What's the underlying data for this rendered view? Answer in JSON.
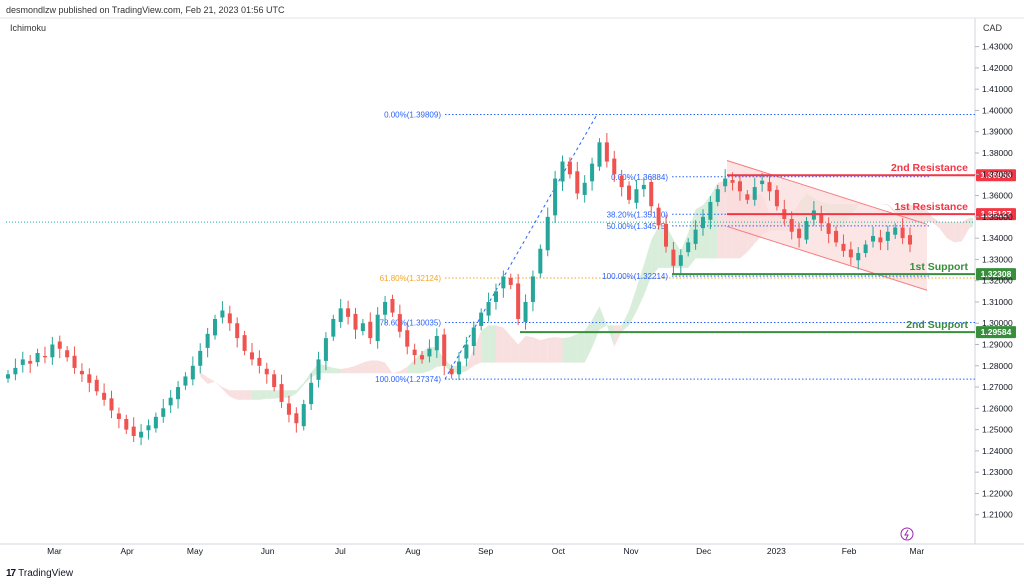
{
  "header": {
    "text": "desmondlzw published on TradingView.com, Feb 21, 2023 01:56 UTC"
  },
  "indicator_label": "Ichimoku",
  "currency_label": "CAD",
  "footer": {
    "logo_mark": "17",
    "logo_text": "TradingView"
  },
  "colors": {
    "up": "#26a69a",
    "down": "#ef5350",
    "resistance": "#f23645",
    "support": "#388e3c",
    "fib": "#2962ff",
    "fib_gold": "#f5a623",
    "cloud_green": "#cfe8d2",
    "cloud_red": "#f8d8d8",
    "channel_fill": "#fbdcdc",
    "channel_line": "#f77c80"
  },
  "chart_data": {
    "type": "candlestick",
    "yaxis": {
      "min": 1.2,
      "max": 1.435,
      "ticks": [
        "1.21000",
        "1.22000",
        "1.23000",
        "1.24000",
        "1.25000",
        "1.26000",
        "1.27000",
        "1.28000",
        "1.29000",
        "1.30000",
        "1.31000",
        "1.32000",
        "1.33000",
        "1.34000",
        "1.35000",
        "1.36000",
        "1.37000",
        "1.38000",
        "1.39000",
        "1.40000",
        "1.41000",
        "1.42000",
        "1.43000"
      ]
    },
    "xaxis": {
      "labels": [
        {
          "label": "Mar",
          "pos": 0.05
        },
        {
          "label": "Apr",
          "pos": 0.125
        },
        {
          "label": "May",
          "pos": 0.195
        },
        {
          "label": "Jun",
          "pos": 0.27
        },
        {
          "label": "Jul",
          "pos": 0.345
        },
        {
          "label": "Aug",
          "pos": 0.42
        },
        {
          "label": "Sep",
          "pos": 0.495
        },
        {
          "label": "Oct",
          "pos": 0.57
        },
        {
          "label": "Nov",
          "pos": 0.645
        },
        {
          "label": "Dec",
          "pos": 0.72
        },
        {
          "label": "2023",
          "pos": 0.795
        },
        {
          "label": "Feb",
          "pos": 0.87
        },
        {
          "label": "Mar",
          "pos": 0.94
        }
      ]
    },
    "levels": [
      {
        "name": "2nd Resistance",
        "value": 1.36956,
        "label": "1.36956",
        "kind": "resistance"
      },
      {
        "name": "1st Resistance",
        "value": 1.35127,
        "label": "1.35127",
        "kind": "resistance"
      },
      {
        "name": "1st Support",
        "value": 1.32308,
        "label": "1.32308",
        "kind": "support"
      },
      {
        "name": "2nd Support",
        "value": 1.29584,
        "label": "1.29584",
        "kind": "support"
      }
    ],
    "fib_large": [
      {
        "label": "0.00%(1.39809)",
        "value": 1.39809
      },
      {
        "label": "61.80%(1.32124)",
        "value": 1.32124
      },
      {
        "label": "78.60%(1.30035)",
        "value": 1.30035
      },
      {
        "label": "100.00%(1.27374)",
        "value": 1.27374
      }
    ],
    "fib_small": [
      {
        "label": "0.00%(1.36884)",
        "value": 1.36884
      },
      {
        "label": "38.20%(1.35120)",
        "value": 1.3512
      },
      {
        "label": "50.00%(1.34575)",
        "value": 1.34575
      },
      {
        "label": "100.00%(1.32214)",
        "value": 1.32214
      }
    ],
    "current_price_line": 1.3475,
    "closes": [
      1.276,
      1.279,
      1.283,
      1.281,
      1.286,
      1.284,
      1.29,
      1.288,
      1.284,
      1.279,
      1.276,
      1.272,
      1.268,
      1.264,
      1.259,
      1.255,
      1.25,
      1.247,
      1.249,
      1.252,
      1.256,
      1.26,
      1.265,
      1.27,
      1.275,
      1.28,
      1.287,
      1.295,
      1.302,
      1.306,
      1.3,
      1.293,
      1.287,
      1.283,
      1.28,
      1.276,
      1.27,
      1.263,
      1.257,
      1.253,
      1.262,
      1.272,
      1.283,
      1.293,
      1.302,
      1.307,
      1.303,
      1.297,
      1.3,
      1.293,
      1.304,
      1.31,
      1.305,
      1.296,
      1.289,
      1.285,
      1.283,
      1.288,
      1.294,
      1.28,
      1.276,
      1.282,
      1.29,
      1.298,
      1.305,
      1.31,
      1.315,
      1.322,
      1.318,
      1.302,
      1.31,
      1.322,
      1.335,
      1.35,
      1.368,
      1.376,
      1.37,
      1.361,
      1.366,
      1.375,
      1.385,
      1.376,
      1.37,
      1.364,
      1.358,
      1.363,
      1.365,
      1.355,
      1.346,
      1.336,
      1.327,
      1.332,
      1.338,
      1.344,
      1.35,
      1.357,
      1.363,
      1.368,
      1.366,
      1.362,
      1.358,
      1.364,
      1.367,
      1.362,
      1.355,
      1.349,
      1.343,
      1.34,
      1.348,
      1.353,
      1.347,
      1.342,
      1.338,
      1.334,
      1.331,
      1.333,
      1.337,
      1.341,
      1.338,
      1.343,
      1.345,
      1.34,
      1.337
    ]
  }
}
